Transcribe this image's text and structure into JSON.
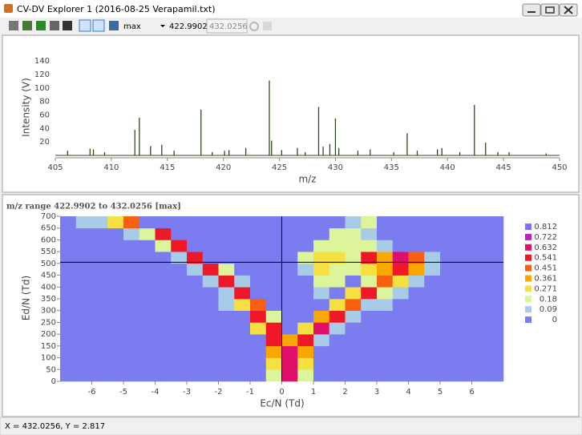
{
  "window": {
    "title": "CV-DV Explorer 1 (2016-08-25 Verapamil.txt)"
  },
  "toolbar": {
    "mode": "max",
    "mz_low": "422.9902",
    "mz_high": "432.0256"
  },
  "status_bar": {
    "text": "X = 432.0256, Y = 2.817"
  },
  "chart_data": [
    {
      "type": "stem",
      "x_label": "m/z",
      "y_label": "Intensity (V)",
      "color": "#2f4a1f",
      "x": [
        406.1,
        408.1,
        408.4,
        409.4,
        412.1,
        412.5,
        413.5,
        414.5,
        415.6,
        418.0,
        419.0,
        420.1,
        420.5,
        422.0,
        424.1,
        424.3,
        425.2,
        426.6,
        427.3,
        428.5,
        428.9,
        429.5,
        430.0,
        430.3,
        432.0,
        433.1,
        435.2,
        436.4,
        437.3,
        439.1,
        439.5,
        441.1,
        442.4,
        443.4,
        444.5,
        445.5,
        448.8
      ],
      "values": [
        7,
        10,
        9,
        5,
        38,
        56,
        14,
        16,
        7,
        68,
        5,
        7,
        8,
        11,
        111,
        22,
        8,
        11,
        5,
        72,
        13,
        17,
        55,
        11,
        7,
        9,
        5,
        33,
        7,
        9,
        11,
        5,
        75,
        19,
        5,
        5,
        3
      ],
      "xlim": [
        405,
        450
      ],
      "ylim": [
        -3.5,
        145
      ],
      "xticks": [
        405,
        410,
        415,
        420,
        425,
        430,
        435,
        440,
        445,
        450
      ],
      "yticks": [
        20,
        40,
        60,
        80,
        100,
        120,
        140
      ]
    },
    {
      "type": "heatmap",
      "title": "m/z range 422.9902 to 432.0256 [max]",
      "x_label": "Ec/N (Td)",
      "y_label": "Ed/N (Td)",
      "x_bins": [
        -7,
        -6.5,
        -6,
        -5.5,
        -5,
        -4.5,
        -4,
        -3.5,
        -3,
        -2.5,
        -2,
        -1.5,
        -1,
        -0.5,
        0,
        0.5,
        1,
        1.5,
        2,
        2.5,
        3,
        3.5,
        4,
        4.5,
        5,
        5.5,
        6,
        6.5,
        7
      ],
      "y_bins": [
        0,
        50,
        100,
        150,
        200,
        250,
        300,
        350,
        400,
        450,
        500,
        550,
        600,
        650,
        700
      ],
      "values": [
        [
          0,
          0,
          0,
          0,
          0,
          0,
          0,
          0,
          0,
          0,
          0,
          0,
          0,
          0.2,
          0.72,
          0.2,
          0,
          0,
          0,
          0,
          0,
          0,
          0,
          0,
          0,
          0,
          0,
          0
        ],
        [
          0,
          0,
          0,
          0,
          0,
          0,
          0,
          0,
          0,
          0,
          0,
          0,
          0,
          0.3,
          0.72,
          0.3,
          0,
          0,
          0,
          0,
          0,
          0,
          0,
          0,
          0,
          0,
          0,
          0
        ],
        [
          0,
          0,
          0,
          0,
          0,
          0,
          0,
          0,
          0,
          0,
          0,
          0,
          0,
          0.45,
          0.7,
          0.4,
          0,
          0,
          0,
          0,
          0,
          0,
          0,
          0,
          0,
          0,
          0,
          0
        ],
        [
          0,
          0,
          0,
          0,
          0,
          0,
          0,
          0,
          0,
          0,
          0,
          0,
          0,
          0.55,
          0.45,
          0.6,
          0.1,
          0,
          0,
          0,
          0,
          0,
          0,
          0,
          0,
          0,
          0,
          0
        ],
        [
          0,
          0,
          0,
          0,
          0,
          0,
          0,
          0,
          0,
          0,
          0,
          0,
          0.3,
          0.6,
          0,
          0.3,
          0.65,
          0.1,
          0,
          0,
          0,
          0,
          0,
          0,
          0,
          0,
          0,
          0
        ],
        [
          0,
          0,
          0,
          0,
          0,
          0,
          0,
          0,
          0,
          0,
          0,
          0,
          0.6,
          0.2,
          0,
          0,
          0.4,
          0.55,
          0.15,
          0,
          0,
          0,
          0,
          0,
          0,
          0,
          0,
          0
        ],
        [
          0,
          0,
          0,
          0,
          0,
          0,
          0,
          0,
          0,
          0,
          0.1,
          0.3,
          0.5,
          0,
          0,
          0,
          0,
          0.35,
          0.5,
          0.15,
          0.1,
          0,
          0,
          0,
          0,
          0,
          0,
          0
        ],
        [
          0,
          0,
          0,
          0,
          0,
          0,
          0,
          0,
          0,
          0,
          0.15,
          0.55,
          0,
          0,
          0,
          0,
          0.15,
          0,
          0.3,
          0.55,
          0.2,
          0.1,
          0,
          0,
          0,
          0,
          0,
          0
        ],
        [
          0,
          0,
          0,
          0,
          0,
          0,
          0,
          0,
          0,
          0.15,
          0.55,
          0.15,
          0,
          0,
          0,
          0,
          0.25,
          0.2,
          0,
          0.25,
          0.5,
          0.3,
          0.1,
          0,
          0,
          0,
          0,
          0
        ],
        [
          0,
          0,
          0,
          0,
          0,
          0,
          0,
          0,
          0.1,
          0.55,
          0.2,
          0,
          0,
          0,
          0,
          0.15,
          0.3,
          0.25,
          0.2,
          0.3,
          0.4,
          0.6,
          0.4,
          0.15,
          0,
          0,
          0,
          0
        ],
        [
          0,
          0,
          0,
          0,
          0,
          0,
          0,
          0.15,
          0.55,
          0,
          0,
          0,
          0,
          0,
          0,
          0.2,
          0.35,
          0.3,
          0.25,
          0.55,
          0.4,
          0.7,
          0.5,
          0.15,
          0,
          0,
          0,
          0
        ],
        [
          0,
          0,
          0,
          0,
          0,
          0,
          0.2,
          0.55,
          0,
          0,
          0,
          0,
          0,
          0,
          0,
          0,
          0.2,
          0.25,
          0.2,
          0.2,
          0.15,
          0,
          0,
          0,
          0,
          0,
          0,
          0
        ],
        [
          0,
          0,
          0,
          0,
          0.1,
          0.2,
          0.55,
          0,
          0,
          0,
          0,
          0,
          0,
          0,
          0,
          0,
          0,
          0.2,
          0.25,
          0.15,
          0,
          0,
          0,
          0,
          0,
          0,
          0,
          0
        ],
        [
          0,
          0.1,
          0.15,
          0.3,
          0.5,
          0,
          0,
          0,
          0,
          0,
          0,
          0,
          0,
          0,
          0,
          0,
          0,
          0,
          0.15,
          0.2,
          0,
          0,
          0,
          0,
          0,
          0,
          0,
          0
        ]
      ],
      "xlim": [
        -7,
        7
      ],
      "ylim": [
        0,
        700
      ],
      "xticks": [
        -6,
        -5,
        -4,
        -3,
        -2,
        -1,
        0,
        1,
        2,
        3,
        4,
        5,
        6
      ],
      "yticks": [
        0,
        50,
        100,
        150,
        200,
        250,
        300,
        350,
        400,
        450,
        500,
        550,
        600,
        650,
        700
      ],
      "color_levels": [
        0.812,
        0.722,
        0.632,
        0.541,
        0.451,
        0.361,
        0.271,
        0.18,
        0.09,
        0
      ],
      "colors": [
        "#8a6cf0",
        "#c020c8",
        "#e0106a",
        "#ee1828",
        "#f66010",
        "#f8a800",
        "#f4e040",
        "#dcf49a",
        "#a8cce8",
        "#7b7cf0"
      ],
      "crosshair": {
        "x": 0,
        "y": 505
      }
    }
  ]
}
